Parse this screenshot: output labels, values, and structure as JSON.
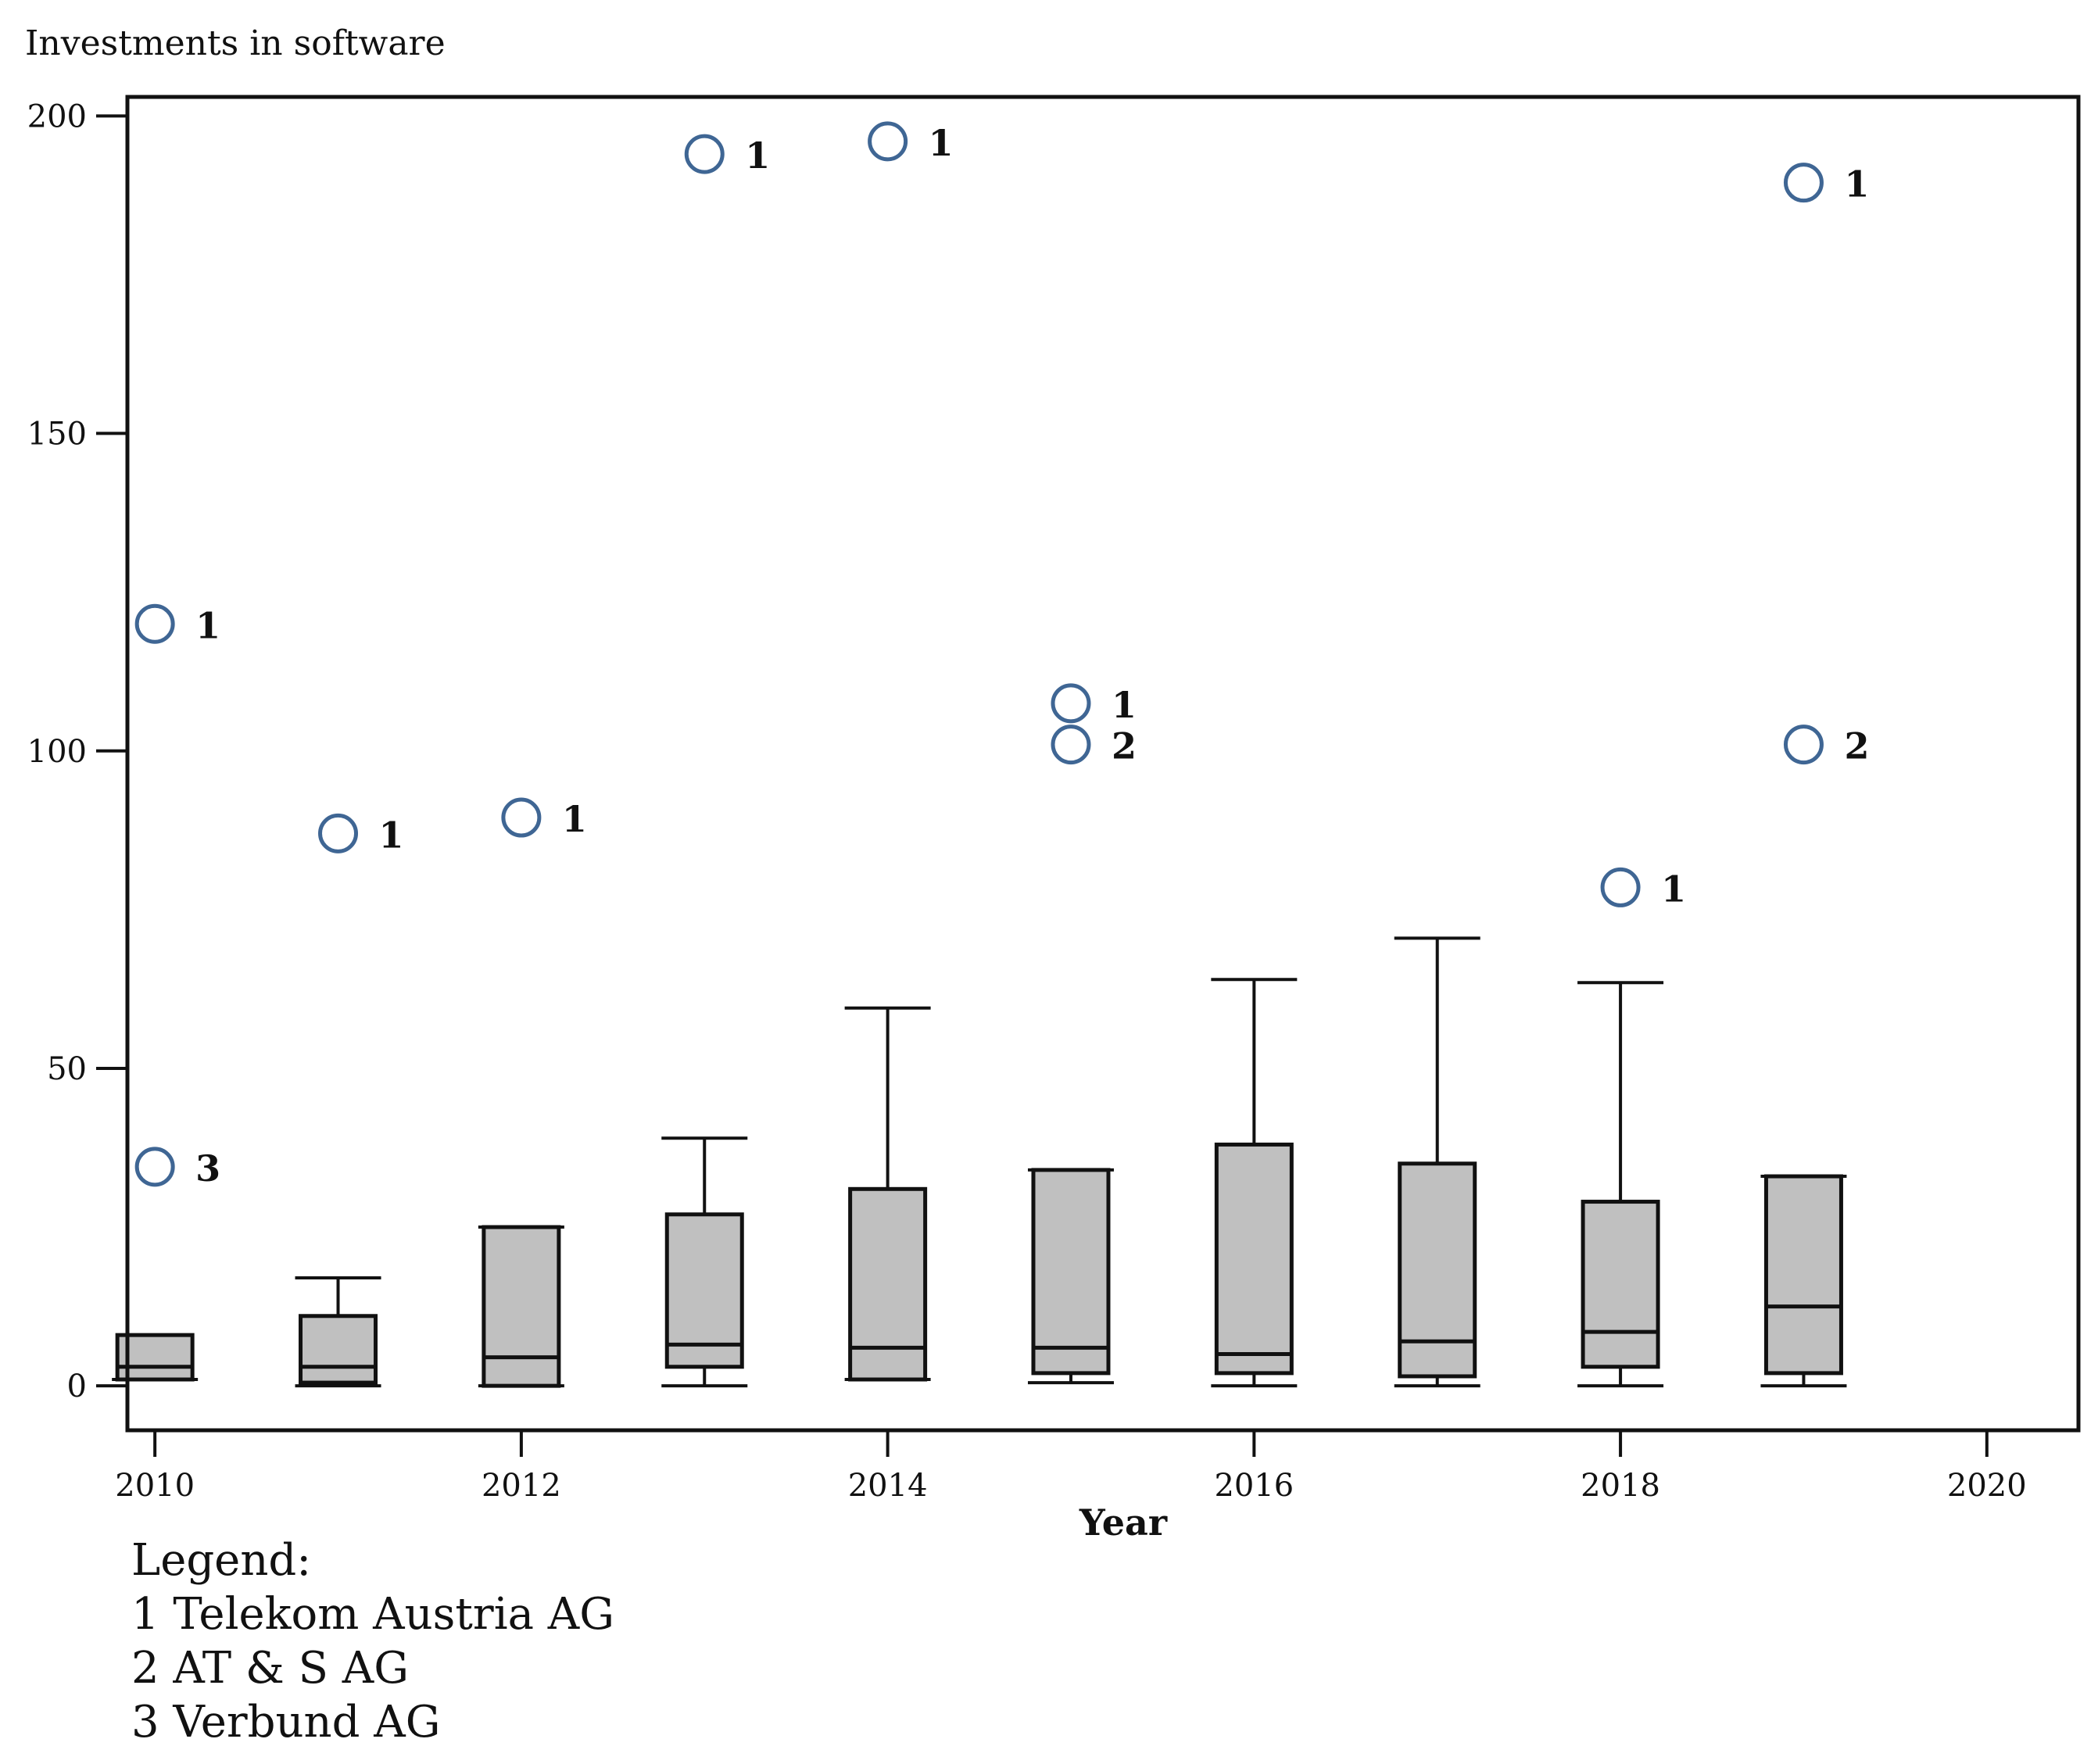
{
  "chart_data": {
    "type": "box",
    "ylabel": "Investments in software",
    "xlabel": "Year",
    "xlim": [
      2009.85,
      2020.5
    ],
    "ylim": [
      -7,
      203
    ],
    "yticks": [
      0,
      50,
      100,
      150,
      200
    ],
    "xticks": [
      2010,
      2012,
      2014,
      2016,
      2018,
      2020
    ],
    "boxes": [
      {
        "x": 2010,
        "min": 1,
        "q1": 1,
        "median": 3,
        "q3": 8,
        "max": 8,
        "whisker_cap": false
      },
      {
        "x": 2011,
        "min": 0,
        "q1": 0.5,
        "median": 3,
        "q3": 11,
        "max": 17,
        "whisker_cap": true
      },
      {
        "x": 2012,
        "min": 0,
        "q1": 0,
        "median": 4.5,
        "q3": 25,
        "max": 25,
        "whisker_cap": true
      },
      {
        "x": 2013,
        "min": 0,
        "q1": 3,
        "median": 6.5,
        "q3": 27,
        "max": 39,
        "whisker_cap": true
      },
      {
        "x": 2014,
        "min": 1,
        "q1": 1,
        "median": 6,
        "q3": 31,
        "max": 59.5,
        "whisker_cap": true
      },
      {
        "x": 2015,
        "min": 0.5,
        "q1": 2,
        "median": 6,
        "q3": 34,
        "max": 34,
        "whisker_cap": true
      },
      {
        "x": 2016,
        "min": 0,
        "q1": 2,
        "median": 5,
        "q3": 38,
        "max": 64,
        "whisker_cap": true
      },
      {
        "x": 2017,
        "min": 0,
        "q1": 1.5,
        "median": 7,
        "q3": 35,
        "max": 70.5,
        "whisker_cap": true
      },
      {
        "x": 2018,
        "min": 0,
        "q1": 3,
        "median": 8.5,
        "q3": 29,
        "max": 63.5,
        "whisker_cap": true
      },
      {
        "x": 2019,
        "min": 0,
        "q1": 2,
        "median": 12.5,
        "q3": 33,
        "max": 33,
        "whisker_cap": true
      }
    ],
    "outliers": [
      {
        "x": 2010,
        "y": 120,
        "label": "1"
      },
      {
        "x": 2010,
        "y": 34.5,
        "label": "3"
      },
      {
        "x": 2011,
        "y": 87,
        "label": "1"
      },
      {
        "x": 2012,
        "y": 89.5,
        "label": "1"
      },
      {
        "x": 2013,
        "y": 194,
        "label": "1"
      },
      {
        "x": 2014,
        "y": 196,
        "label": "1"
      },
      {
        "x": 2015,
        "y": 107.5,
        "label": "1"
      },
      {
        "x": 2015,
        "y": 101,
        "label": "2"
      },
      {
        "x": 2018,
        "y": 78.5,
        "label": "1"
      },
      {
        "x": 2019,
        "y": 189.5,
        "label": "1"
      },
      {
        "x": 2019,
        "y": 101,
        "label": "2"
      }
    ]
  },
  "legend": {
    "title": "Legend:",
    "items": [
      "1 Telekom Austria AG",
      "2 AT & S AG",
      "3 Verbund AG"
    ]
  },
  "colors": {
    "box_fill": "#c0c0c0",
    "outlier_stroke": "#3f6694",
    "axis": "#111111"
  }
}
